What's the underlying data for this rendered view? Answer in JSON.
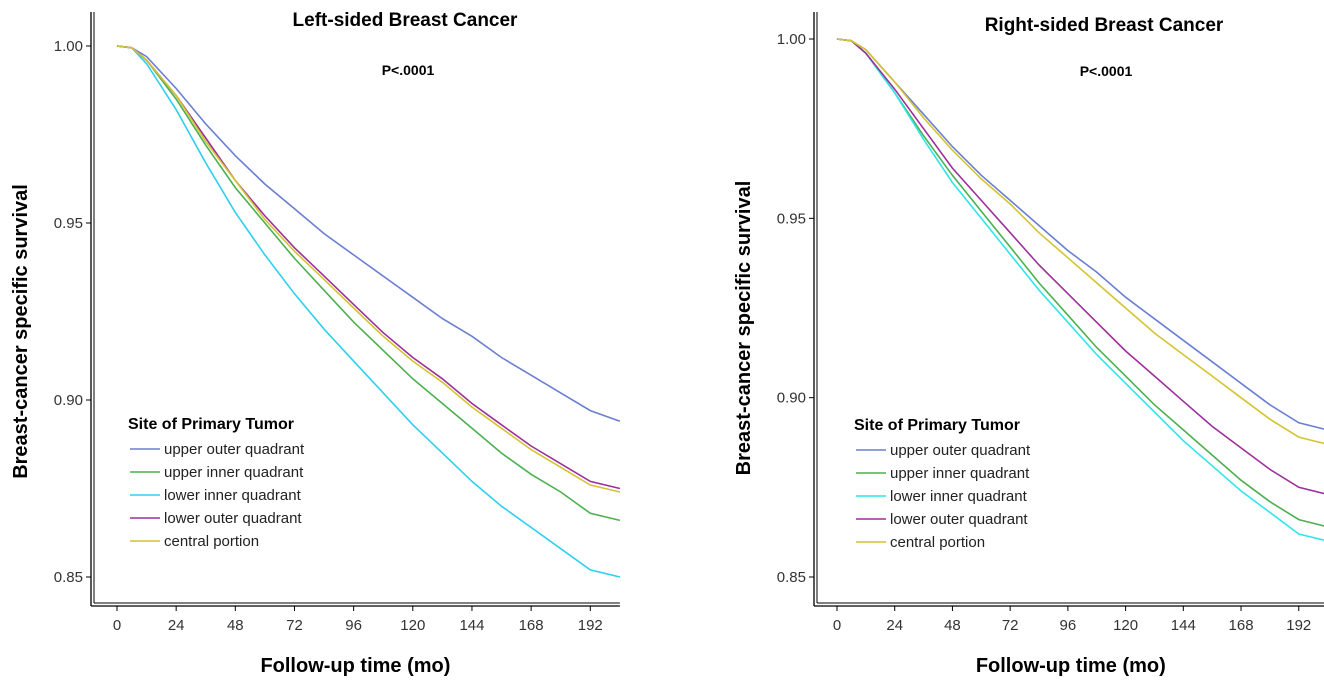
{
  "chart_data": [
    {
      "type": "line",
      "title": "Left-sided Breast Cancer",
      "annotation": "P<.0001",
      "xlabel": "Follow-up time (mo)",
      "ylabel": "Breast-cancer specific survival",
      "xticks": [
        0,
        24,
        48,
        72,
        96,
        120,
        144,
        168,
        192
      ],
      "yticks": [
        "0.85",
        "0.90",
        "0.95",
        "1.00"
      ],
      "xlim": [
        0,
        204
      ],
      "ylim": [
        0.85,
        1.0
      ],
      "grid": false,
      "legend": {
        "title": "Site of Primary Tumor",
        "position": "lower-left"
      },
      "series": [
        {
          "name": "upper outer quadrant",
          "color": "#6b7fd1",
          "x": [
            0,
            6,
            12,
            24,
            36,
            48,
            60,
            72,
            84,
            96,
            108,
            120,
            132,
            144,
            156,
            168,
            180,
            192,
            204
          ],
          "y": [
            1.0,
            0.9995,
            0.997,
            0.988,
            0.978,
            0.969,
            0.961,
            0.954,
            0.947,
            0.941,
            0.935,
            0.929,
            0.923,
            0.918,
            0.912,
            0.907,
            0.902,
            0.897,
            0.894
          ]
        },
        {
          "name": "upper inner quadrant",
          "color": "#4cb050",
          "x": [
            0,
            6,
            12,
            24,
            36,
            48,
            60,
            72,
            84,
            96,
            108,
            120,
            132,
            144,
            156,
            168,
            180,
            192,
            204
          ],
          "y": [
            1.0,
            0.9995,
            0.996,
            0.985,
            0.972,
            0.96,
            0.95,
            0.94,
            0.931,
            0.922,
            0.914,
            0.906,
            0.899,
            0.892,
            0.885,
            0.879,
            0.874,
            0.868,
            0.866
          ]
        },
        {
          "name": "lower inner quadrant",
          "color": "#2ecfef",
          "x": [
            0,
            6,
            12,
            24,
            36,
            48,
            60,
            72,
            84,
            96,
            108,
            120,
            132,
            144,
            156,
            168,
            180,
            192,
            204
          ],
          "y": [
            1.0,
            0.9995,
            0.995,
            0.982,
            0.967,
            0.953,
            0.941,
            0.93,
            0.92,
            0.911,
            0.902,
            0.893,
            0.885,
            0.877,
            0.87,
            0.864,
            0.858,
            0.852,
            0.85
          ]
        },
        {
          "name": "lower outer quadrant",
          "color": "#9c2f9c",
          "x": [
            0,
            6,
            12,
            24,
            36,
            48,
            60,
            72,
            84,
            96,
            108,
            120,
            132,
            144,
            156,
            168,
            180,
            192,
            204
          ],
          "y": [
            1.0,
            0.9995,
            0.996,
            0.986,
            0.974,
            0.962,
            0.952,
            0.943,
            0.935,
            0.927,
            0.919,
            0.912,
            0.906,
            0.899,
            0.893,
            0.887,
            0.882,
            0.877,
            0.875
          ]
        },
        {
          "name": "central portion",
          "color": "#d4c430",
          "x": [
            0,
            6,
            12,
            24,
            36,
            48,
            60,
            72,
            84,
            96,
            108,
            120,
            132,
            144,
            156,
            168,
            180,
            192,
            204
          ],
          "y": [
            1.0,
            0.9995,
            0.996,
            0.986,
            0.973,
            0.962,
            0.951,
            0.942,
            0.934,
            0.926,
            0.918,
            0.911,
            0.905,
            0.898,
            0.892,
            0.886,
            0.881,
            0.876,
            0.874
          ]
        }
      ]
    },
    {
      "type": "line",
      "title": "Right-sided Breast Cancer",
      "annotation": "P<.0001",
      "xlabel": "Follow-up time (mo)",
      "ylabel": "Breast-cancer specific survival",
      "xticks": [
        0,
        24,
        48,
        72,
        96,
        120,
        144,
        168,
        192
      ],
      "yticks": [
        "0.85",
        "0.90",
        "0.95",
        "1.00"
      ],
      "xlim": [
        0,
        204
      ],
      "ylim": [
        0.85,
        1.0
      ],
      "grid": false,
      "legend": {
        "title": "Site of Primary Tumor",
        "position": "lower-left"
      },
      "series": [
        {
          "name": "upper outer quadrant",
          "color": "#6b7fd1",
          "x": [
            0,
            6,
            12,
            24,
            36,
            48,
            60,
            72,
            84,
            96,
            108,
            120,
            132,
            144,
            156,
            168,
            180,
            192,
            204
          ],
          "y": [
            1.0,
            0.9995,
            0.997,
            0.988,
            0.979,
            0.97,
            0.962,
            0.955,
            0.948,
            0.941,
            0.935,
            0.928,
            0.922,
            0.916,
            0.91,
            0.904,
            0.898,
            0.893,
            0.891
          ]
        },
        {
          "name": "upper inner quadrant",
          "color": "#4cb050",
          "x": [
            0,
            6,
            12,
            24,
            36,
            48,
            60,
            72,
            84,
            96,
            108,
            120,
            132,
            144,
            156,
            168,
            180,
            192,
            204
          ],
          "y": [
            1.0,
            0.9995,
            0.996,
            0.985,
            0.973,
            0.962,
            0.952,
            0.942,
            0.932,
            0.923,
            0.914,
            0.906,
            0.898,
            0.891,
            0.884,
            0.877,
            0.871,
            0.866,
            0.864
          ]
        },
        {
          "name": "lower inner quadrant",
          "color": "#2ee6ea",
          "x": [
            0,
            6,
            12,
            24,
            36,
            48,
            60,
            72,
            84,
            96,
            108,
            120,
            132,
            144,
            156,
            168,
            180,
            192,
            204
          ],
          "y": [
            1.0,
            0.9995,
            0.996,
            0.985,
            0.972,
            0.96,
            0.95,
            0.94,
            0.93,
            0.921,
            0.912,
            0.904,
            0.896,
            0.888,
            0.881,
            0.874,
            0.868,
            0.862,
            0.86
          ]
        },
        {
          "name": "lower outer quadrant",
          "color": "#9c2f9c",
          "x": [
            0,
            6,
            12,
            24,
            36,
            48,
            60,
            72,
            84,
            96,
            108,
            120,
            132,
            144,
            156,
            168,
            180,
            192,
            204
          ],
          "y": [
            1.0,
            0.9995,
            0.996,
            0.986,
            0.975,
            0.964,
            0.955,
            0.946,
            0.937,
            0.929,
            0.921,
            0.913,
            0.906,
            0.899,
            0.892,
            0.886,
            0.88,
            0.875,
            0.873
          ]
        },
        {
          "name": "central portion",
          "color": "#d4c430",
          "x": [
            0,
            6,
            12,
            24,
            36,
            48,
            60,
            72,
            84,
            96,
            108,
            120,
            132,
            144,
            156,
            168,
            180,
            192,
            204
          ],
          "y": [
            1.0,
            0.9995,
            0.997,
            0.988,
            0.978,
            0.969,
            0.961,
            0.954,
            0.946,
            0.939,
            0.932,
            0.925,
            0.918,
            0.912,
            0.906,
            0.9,
            0.894,
            0.889,
            0.887
          ]
        }
      ]
    }
  ]
}
